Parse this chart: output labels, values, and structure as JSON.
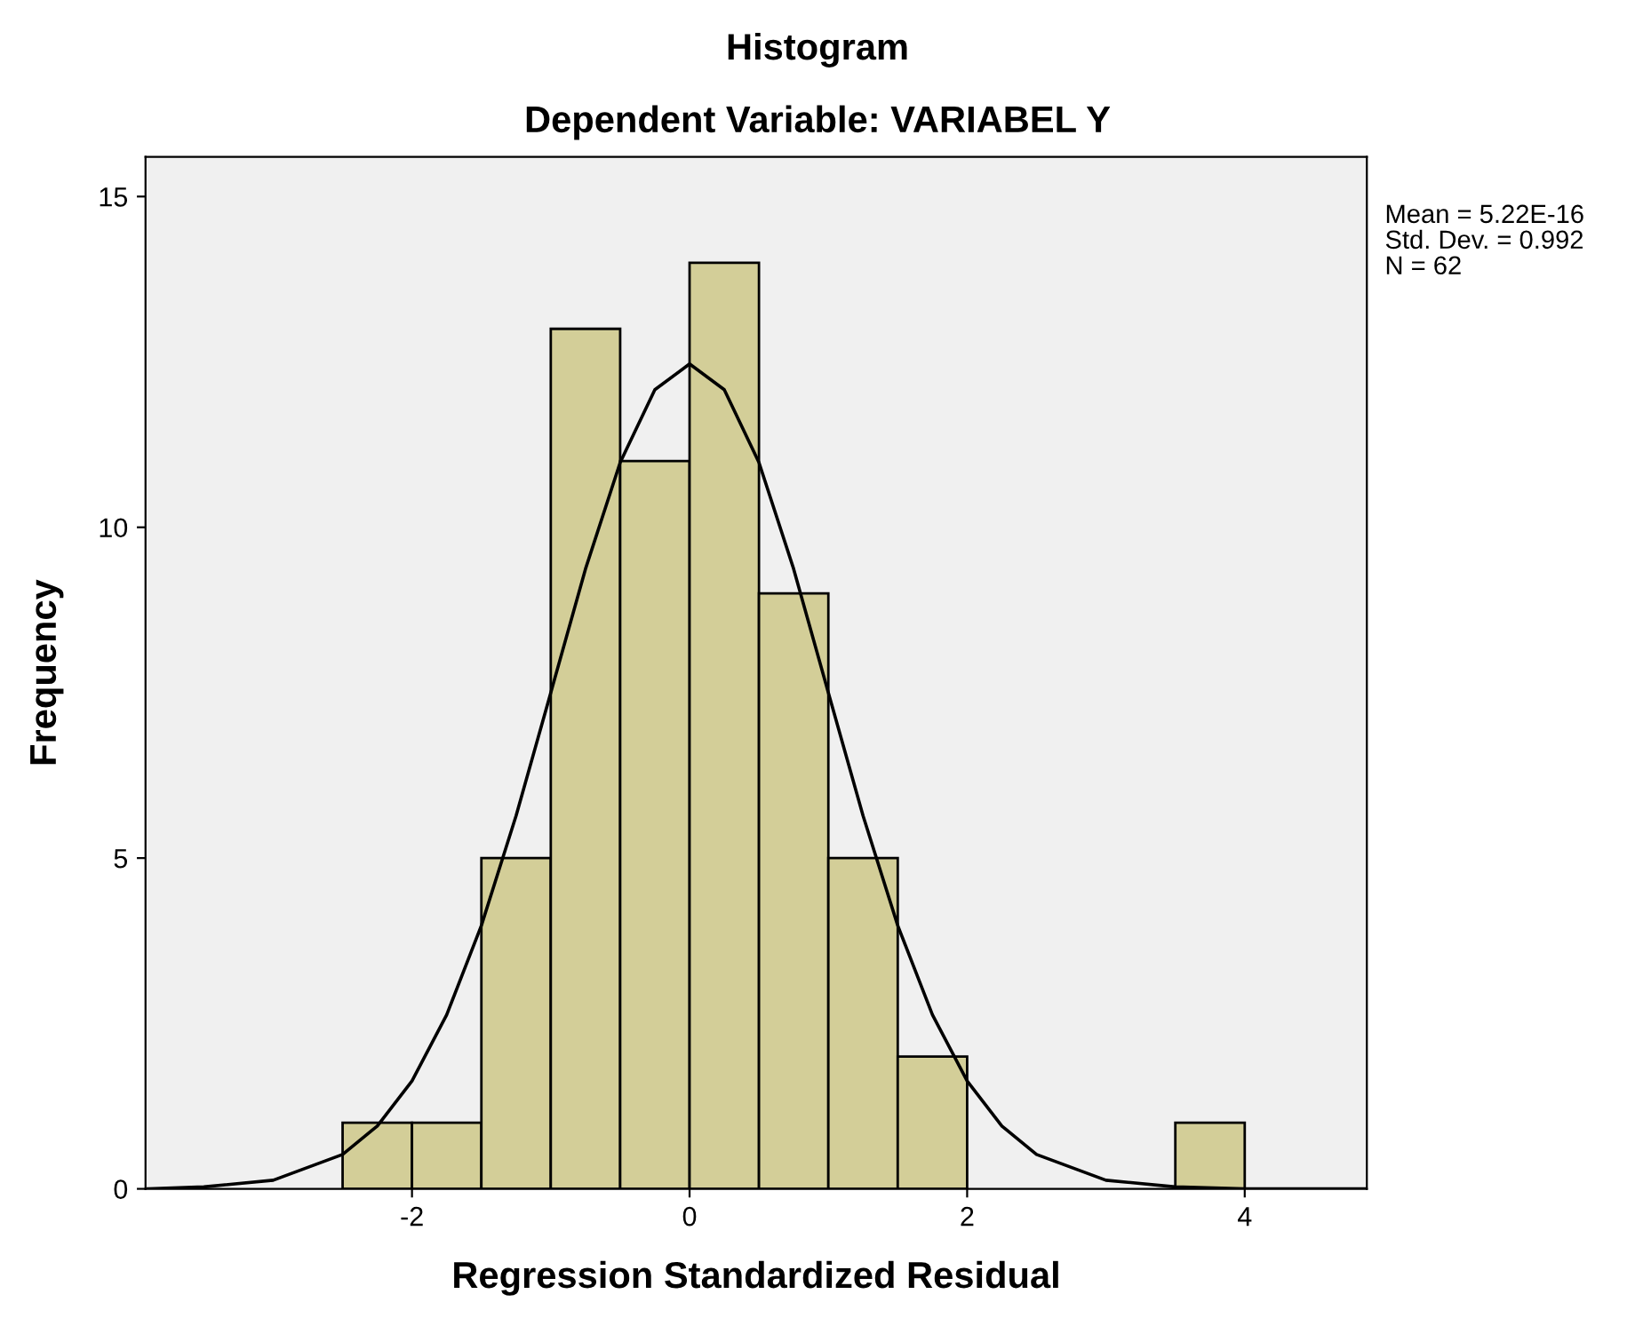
{
  "chart_data": {
    "type": "histogram",
    "title": "Histogram",
    "subtitle": "Dependent Variable: VARIABEL Y",
    "xlabel": "Regression Standardized Residual",
    "ylabel": "Frequency",
    "bins": [
      -2.5,
      -2.0,
      -1.5,
      -1.0,
      -0.5,
      0.0,
      0.5,
      1.0,
      1.5,
      2.0,
      2.5,
      3.0,
      3.5,
      4.0
    ],
    "values": [
      1,
      1,
      5,
      13,
      11,
      14,
      9,
      5,
      2,
      0,
      0,
      0,
      1
    ],
    "color": "#d3ce98",
    "series": [
      {
        "type": "line",
        "color": "#000000",
        "x": [
          -3.9,
          -3.5,
          -3.0,
          -2.5,
          -2.25,
          -2.0,
          -1.75,
          -1.5,
          -1.25,
          -1.0,
          -0.75,
          -0.5,
          -0.25,
          0.0,
          0.25,
          0.5,
          0.75,
          1.0,
          1.25,
          1.5,
          1.75,
          2.0,
          2.25,
          2.5,
          3.0,
          3.5,
          4.0,
          4.88
        ],
        "values": [
          0.0,
          0.03,
          0.13,
          0.52,
          0.95,
          1.63,
          2.63,
          3.98,
          5.64,
          7.5,
          9.37,
          10.98,
          12.08,
          12.47,
          12.08,
          10.98,
          9.37,
          7.5,
          5.64,
          3.98,
          2.63,
          1.63,
          0.95,
          0.52,
          0.13,
          0.03,
          0.0,
          0.0
        ]
      }
    ],
    "xlim": [
      -3.92,
      4.88
    ],
    "ylim": [
      0,
      15.6
    ],
    "xticks": [
      -2,
      0,
      2,
      4
    ],
    "yticks": [
      0,
      5,
      10,
      15
    ],
    "grid": false,
    "legend": false,
    "annotations": [
      "Mean = 5.22E-16",
      "Std. Dev. = 0.992",
      "N = 62"
    ]
  }
}
